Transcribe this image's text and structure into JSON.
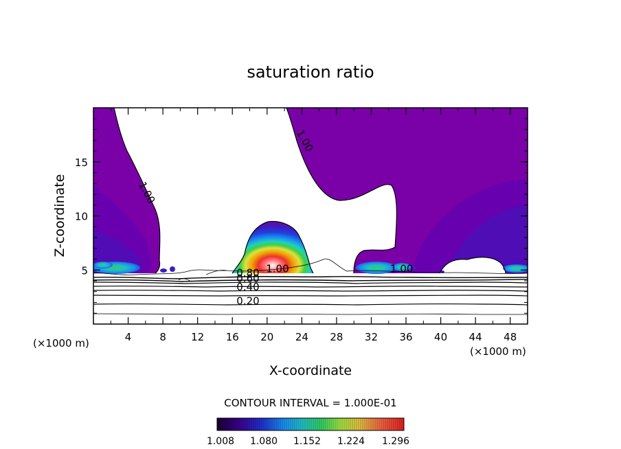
{
  "chart_data": {
    "type": "contour",
    "title": "saturation ratio",
    "xlabel": "X-coordinate",
    "ylabel": "Z-coordinate",
    "x_unit_left": "(×1000 m)",
    "x_unit_right": "(×1000 m)",
    "xlim": [
      0,
      50
    ],
    "ylim": [
      0,
      20
    ],
    "x_ticks": [
      4,
      8,
      12,
      16,
      20,
      24,
      28,
      32,
      36,
      40,
      44,
      48
    ],
    "y_ticks": [
      5,
      10,
      15
    ],
    "contour_labels": [
      {
        "text": "1.00",
        "x": 24.0,
        "y": 16.8
      },
      {
        "text": "1.00",
        "x": 5.8,
        "y": 12.0
      },
      {
        "text": "1.00",
        "x": 21.2,
        "y": 4.8
      },
      {
        "text": "1.00",
        "x": 35.5,
        "y": 4.8
      },
      {
        "text": "0.80",
        "x": 17.8,
        "y": 4.4
      },
      {
        "text": "0.60",
        "x": 17.8,
        "y": 3.9
      },
      {
        "text": "0.40",
        "x": 17.8,
        "y": 3.1
      },
      {
        "text": "0.20",
        "x": 17.8,
        "y": 1.8
      }
    ],
    "contour_interval_text": "CONTOUR INTERVAL = 1.000E-01",
    "colorbar": {
      "ticks": [
        "1.008",
        "1.080",
        "1.152",
        "1.224",
        "1.296"
      ],
      "colors": [
        "#1a0030",
        "#3a0090",
        "#2030d0",
        "#1890f0",
        "#20c0c0",
        "#30d060",
        "#a0e040",
        "#e0c040",
        "#f06040",
        "#e02020"
      ]
    }
  }
}
